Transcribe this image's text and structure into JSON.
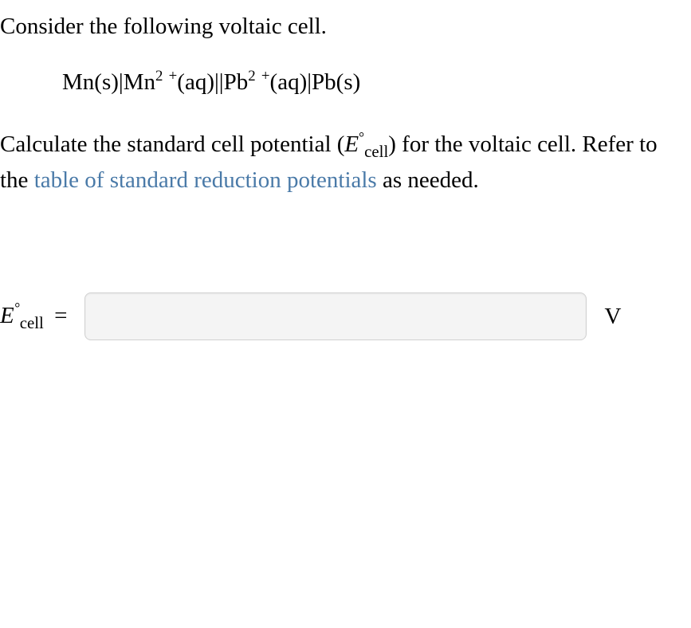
{
  "intro": "Consider the following voltaic cell.",
  "notation": {
    "a1": "Mn(s)|Mn",
    "exp1": "2",
    "plus1": "+",
    "a2": "(aq)||Pb",
    "exp2": "2",
    "plus2": "+",
    "a3": "(aq)|Pb(s)"
  },
  "question": {
    "pre": "Calculate the standard cell potential (",
    "sym_E": "E",
    "deg": "°",
    "sub": "cell",
    "mid": ") for the voltaic cell. Refer to the ",
    "link": "table of standard reduction potentials",
    "post": " as needed."
  },
  "answer": {
    "E": "E",
    "deg": "°",
    "sub": "cell",
    "equals": "=",
    "value": "",
    "unit": "V"
  }
}
